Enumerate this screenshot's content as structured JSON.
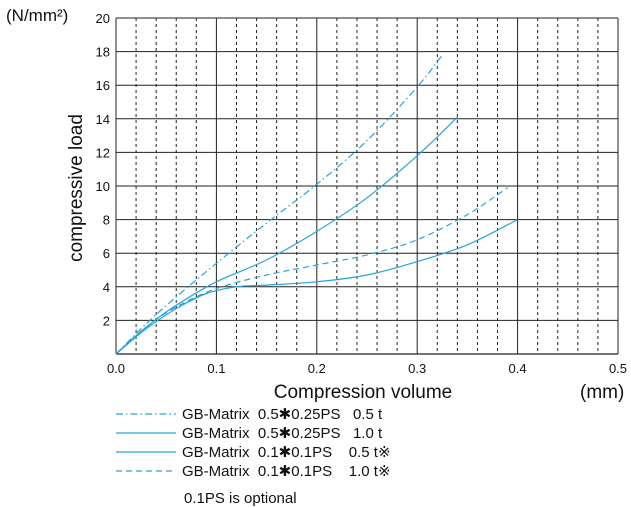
{
  "chart_data": {
    "type": "line",
    "unit_label": "(N/mm²)",
    "ylabel": "compressive load",
    "xlabel": "Compression volume",
    "x_unit_label": "(mm)",
    "xlim": [
      0.0,
      0.5
    ],
    "ylim": [
      0,
      20
    ],
    "x_ticks": [
      0.0,
      0.1,
      0.2,
      0.3,
      0.4,
      0.5
    ],
    "x_tick_labels": [
      "0.0",
      "0.1",
      "0.2",
      "0.3",
      "0.4",
      "0.5"
    ],
    "y_ticks": [
      2,
      4,
      6,
      8,
      10,
      12,
      14,
      16,
      18,
      20
    ],
    "y_tick_labels": [
      "2",
      "4",
      "6",
      "8",
      "10",
      "12",
      "14",
      "16",
      "18",
      "20"
    ],
    "grid": true,
    "legend_position": "bottom",
    "series": [
      {
        "name": "GB-Matrix  0.5✱0.25PS   0.5 t",
        "dash": "dashdot",
        "color": "#29a3d6",
        "x": [
          0.0,
          0.03,
          0.06,
          0.1,
          0.15,
          0.2,
          0.25,
          0.3,
          0.325
        ],
        "y": [
          0.0,
          1.8,
          3.4,
          5.4,
          7.8,
          10.1,
          12.7,
          15.9,
          17.8
        ]
      },
      {
        "name": "GB-Matrix  0.5✱0.25PS   1.0 t",
        "dash": "solid",
        "color": "#29a3d6",
        "x": [
          0.0,
          0.03,
          0.06,
          0.1,
          0.15,
          0.2,
          0.25,
          0.3,
          0.34
        ],
        "y": [
          0.0,
          1.6,
          2.9,
          4.3,
          5.6,
          7.3,
          9.3,
          11.8,
          14.1
        ]
      },
      {
        "name": "GB-Matrix  0.1✱0.1PS    0.5 t※",
        "dash": "solid",
        "color": "#29a3d6",
        "x": [
          0.0,
          0.03,
          0.06,
          0.09,
          0.12,
          0.15,
          0.2,
          0.25,
          0.3,
          0.35,
          0.4
        ],
        "y": [
          0.0,
          1.5,
          2.7,
          3.6,
          4.0,
          4.1,
          4.3,
          4.7,
          5.5,
          6.5,
          8.0
        ]
      },
      {
        "name": "GB-Matrix  0.1✱0.1PS    1.0 t※",
        "dash": "dashed",
        "color": "#29a3d6",
        "x": [
          0.0,
          0.03,
          0.06,
          0.1,
          0.15,
          0.2,
          0.25,
          0.3,
          0.35,
          0.39
        ],
        "y": [
          0.0,
          1.6,
          2.8,
          3.9,
          4.7,
          5.3,
          5.9,
          6.8,
          8.3,
          9.9
        ]
      }
    ]
  },
  "footnote": "0.1PS is optional"
}
